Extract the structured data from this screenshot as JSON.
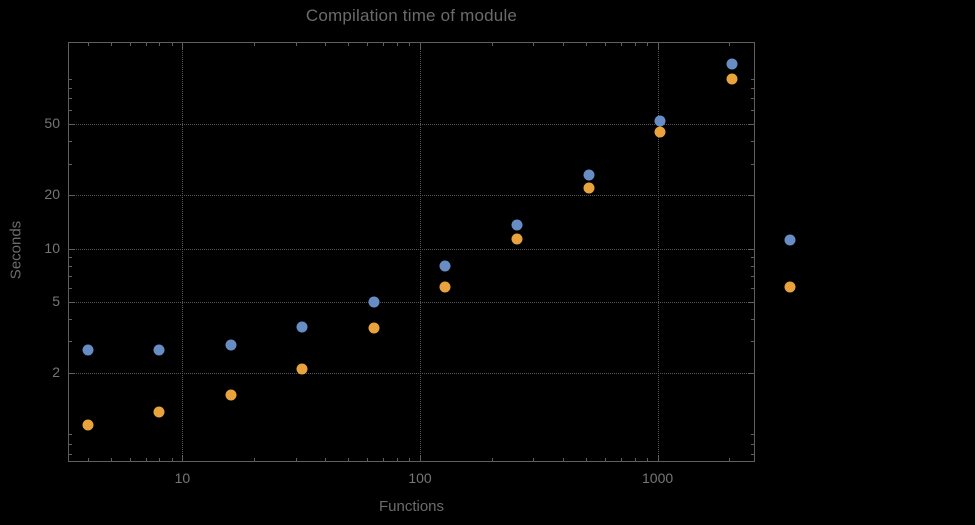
{
  "chart_data": {
    "type": "scatter",
    "title": "Compilation time of module",
    "xlabel": "Functions",
    "ylabel": "Seconds",
    "x_scale": "log",
    "y_scale": "log",
    "grid": "dotted",
    "legend_position": "right-outside",
    "x_ticks": [
      10,
      100,
      1000
    ],
    "y_ticks": [
      2,
      5,
      10,
      20,
      50
    ],
    "xlim": [
      3.3,
      2570
    ],
    "ylim": [
      0.63,
      145
    ],
    "x": [
      4,
      8,
      16,
      32,
      64,
      128,
      256,
      512,
      1024,
      2048
    ],
    "series": [
      {
        "name": "series-blue",
        "color": "#688cc4",
        "values": [
          2.7,
          2.7,
          2.85,
          3.6,
          5.0,
          8.0,
          13.6,
          26,
          52,
          109
        ]
      },
      {
        "name": "series-orange",
        "color": "#e8a33d",
        "values": [
          1.02,
          1.2,
          1.5,
          2.1,
          3.55,
          6.1,
          11.3,
          22,
          45,
          90
        ]
      }
    ],
    "legend": {
      "entries": [
        {
          "marker_color": "#688cc4",
          "label": ""
        },
        {
          "marker_color": "#e8a33d",
          "label": ""
        }
      ]
    }
  }
}
